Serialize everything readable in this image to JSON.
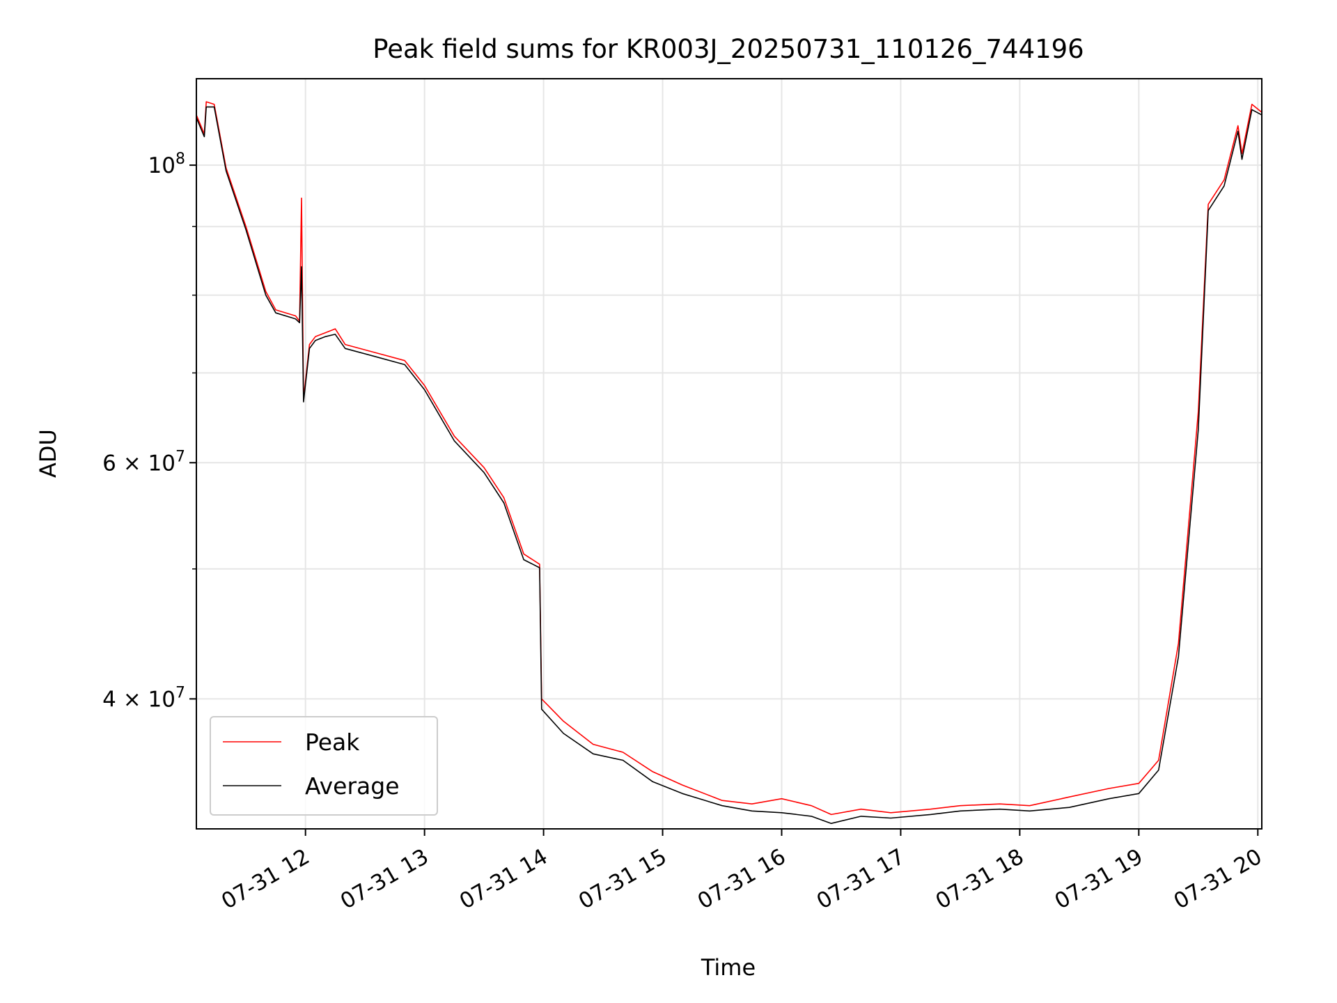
{
  "chart_data": {
    "type": "line",
    "title": "Peak field sums for KR003J_20250731_110126_744196",
    "xlabel": "Time",
    "ylabel": "ADU",
    "yscale": "log",
    "xlim": [
      "2025-07-31T11:05",
      "2025-07-31T20:02"
    ],
    "ylim": [
      32000000,
      116000000
    ],
    "grid": true,
    "legend": "lower-left",
    "x_ticks": [
      {
        "t": "2025-07-31T12:00",
        "label": "07-31 12"
      },
      {
        "t": "2025-07-31T13:00",
        "label": "07-31 13"
      },
      {
        "t": "2025-07-31T14:00",
        "label": "07-31 14"
      },
      {
        "t": "2025-07-31T15:00",
        "label": "07-31 15"
      },
      {
        "t": "2025-07-31T16:00",
        "label": "07-31 16"
      },
      {
        "t": "2025-07-31T17:00",
        "label": "07-31 17"
      },
      {
        "t": "2025-07-31T18:00",
        "label": "07-31 18"
      },
      {
        "t": "2025-07-31T19:00",
        "label": "07-31 19"
      },
      {
        "t": "2025-07-31T20:00",
        "label": "07-31 20"
      }
    ],
    "y_ticks": [
      {
        "value": 100000000,
        "base": "10",
        "exp": "8",
        "mult": ""
      },
      {
        "value": 60000000,
        "base": "10",
        "exp": "7",
        "mult": "6 × "
      },
      {
        "value": 40000000,
        "base": "10",
        "exp": "7",
        "mult": "4 × "
      }
    ],
    "y_minor_ticks": [
      90000000,
      80000000,
      70000000,
      50000000
    ],
    "series": [
      {
        "name": "Peak",
        "color": "#ff0000",
        "points": [
          [
            "2025-07-31T11:05",
            109000000
          ],
          [
            "2025-07-31T11:09",
            105500000
          ],
          [
            "2025-07-31T11:10",
            111500000
          ],
          [
            "2025-07-31T11:14",
            111000000
          ],
          [
            "2025-07-31T11:20",
            99500000
          ],
          [
            "2025-07-31T11:30",
            90000000
          ],
          [
            "2025-07-31T11:40",
            80500000
          ],
          [
            "2025-07-31T11:45",
            78000000
          ],
          [
            "2025-07-31T11:55",
            77200000
          ],
          [
            "2025-07-31T11:57",
            76500000
          ],
          [
            "2025-07-31T11:58",
            94500000
          ],
          [
            "2025-07-31T11:59",
            67000000
          ],
          [
            "2025-07-31T12:02",
            73500000
          ],
          [
            "2025-07-31T12:05",
            74500000
          ],
          [
            "2025-07-31T12:10",
            75000000
          ],
          [
            "2025-07-31T12:15",
            75500000
          ],
          [
            "2025-07-31T12:20",
            73500000
          ],
          [
            "2025-07-31T12:35",
            72500000
          ],
          [
            "2025-07-31T12:50",
            71500000
          ],
          [
            "2025-07-31T13:00",
            68500000
          ],
          [
            "2025-07-31T13:15",
            62800000
          ],
          [
            "2025-07-31T13:30",
            59500000
          ],
          [
            "2025-07-31T13:40",
            56500000
          ],
          [
            "2025-07-31T13:50",
            51300000
          ],
          [
            "2025-07-31T13:58",
            50400000
          ],
          [
            "2025-07-31T13:59",
            40000000
          ],
          [
            "2025-07-31T14:10",
            38500000
          ],
          [
            "2025-07-31T14:25",
            37000000
          ],
          [
            "2025-07-31T14:40",
            36500000
          ],
          [
            "2025-07-31T14:55",
            35300000
          ],
          [
            "2025-07-31T15:10",
            34500000
          ],
          [
            "2025-07-31T15:30",
            33600000
          ],
          [
            "2025-07-31T15:45",
            33400000
          ],
          [
            "2025-07-31T16:00",
            33700000
          ],
          [
            "2025-07-31T16:15",
            33300000
          ],
          [
            "2025-07-31T16:25",
            32800000
          ],
          [
            "2025-07-31T16:40",
            33100000
          ],
          [
            "2025-07-31T16:55",
            32900000
          ],
          [
            "2025-07-31T17:15",
            33100000
          ],
          [
            "2025-07-31T17:30",
            33300000
          ],
          [
            "2025-07-31T17:50",
            33400000
          ],
          [
            "2025-07-31T18:05",
            33300000
          ],
          [
            "2025-07-31T18:25",
            33800000
          ],
          [
            "2025-07-31T18:45",
            34300000
          ],
          [
            "2025-07-31T19:00",
            34600000
          ],
          [
            "2025-07-31T19:10",
            36000000
          ],
          [
            "2025-07-31T19:20",
            44000000
          ],
          [
            "2025-07-31T19:30",
            65500000
          ],
          [
            "2025-07-31T19:35",
            93500000
          ],
          [
            "2025-07-31T19:43",
            97500000
          ],
          [
            "2025-07-31T19:50",
            107000000
          ],
          [
            "2025-07-31T19:52",
            102000000
          ],
          [
            "2025-07-31T19:57",
            111000000
          ],
          [
            "2025-07-31T20:02",
            109500000
          ]
        ]
      },
      {
        "name": "Average",
        "color": "#000000",
        "points": [
          [
            "2025-07-31T11:05",
            108500000
          ],
          [
            "2025-07-31T11:09",
            105000000
          ],
          [
            "2025-07-31T11:10",
            110500000
          ],
          [
            "2025-07-31T11:14",
            110500000
          ],
          [
            "2025-07-31T11:20",
            99000000
          ],
          [
            "2025-07-31T11:30",
            89500000
          ],
          [
            "2025-07-31T11:40",
            80000000
          ],
          [
            "2025-07-31T11:45",
            77600000
          ],
          [
            "2025-07-31T11:55",
            76800000
          ],
          [
            "2025-07-31T11:57",
            76300000
          ],
          [
            "2025-07-31T11:58",
            84000000
          ],
          [
            "2025-07-31T11:59",
            66600000
          ],
          [
            "2025-07-31T12:02",
            73000000
          ],
          [
            "2025-07-31T12:05",
            74000000
          ],
          [
            "2025-07-31T12:10",
            74500000
          ],
          [
            "2025-07-31T12:15",
            74800000
          ],
          [
            "2025-07-31T12:20",
            73000000
          ],
          [
            "2025-07-31T12:35",
            72000000
          ],
          [
            "2025-07-31T12:50",
            71000000
          ],
          [
            "2025-07-31T13:00",
            68000000
          ],
          [
            "2025-07-31T13:15",
            62300000
          ],
          [
            "2025-07-31T13:30",
            59000000
          ],
          [
            "2025-07-31T13:40",
            56000000
          ],
          [
            "2025-07-31T13:50",
            50800000
          ],
          [
            "2025-07-31T13:58",
            50100000
          ],
          [
            "2025-07-31T13:59",
            39300000
          ],
          [
            "2025-07-31T14:10",
            37700000
          ],
          [
            "2025-07-31T14:25",
            36400000
          ],
          [
            "2025-07-31T14:40",
            36000000
          ],
          [
            "2025-07-31T14:55",
            34700000
          ],
          [
            "2025-07-31T15:10",
            34000000
          ],
          [
            "2025-07-31T15:30",
            33300000
          ],
          [
            "2025-07-31T15:45",
            33000000
          ],
          [
            "2025-07-31T16:00",
            32900000
          ],
          [
            "2025-07-31T16:15",
            32700000
          ],
          [
            "2025-07-31T16:25",
            32300000
          ],
          [
            "2025-07-31T16:40",
            32700000
          ],
          [
            "2025-07-31T16:55",
            32600000
          ],
          [
            "2025-07-31T17:15",
            32800000
          ],
          [
            "2025-07-31T17:30",
            33000000
          ],
          [
            "2025-07-31T17:50",
            33100000
          ],
          [
            "2025-07-31T18:05",
            33000000
          ],
          [
            "2025-07-31T18:25",
            33200000
          ],
          [
            "2025-07-31T18:45",
            33700000
          ],
          [
            "2025-07-31T19:00",
            34000000
          ],
          [
            "2025-07-31T19:10",
            35400000
          ],
          [
            "2025-07-31T19:20",
            43000000
          ],
          [
            "2025-07-31T19:30",
            63500000
          ],
          [
            "2025-07-31T19:35",
            92500000
          ],
          [
            "2025-07-31T19:43",
            96500000
          ],
          [
            "2025-07-31T19:50",
            106000000
          ],
          [
            "2025-07-31T19:52",
            101000000
          ],
          [
            "2025-07-31T19:57",
            110000000
          ],
          [
            "2025-07-31T20:02",
            109000000
          ]
        ]
      }
    ]
  }
}
